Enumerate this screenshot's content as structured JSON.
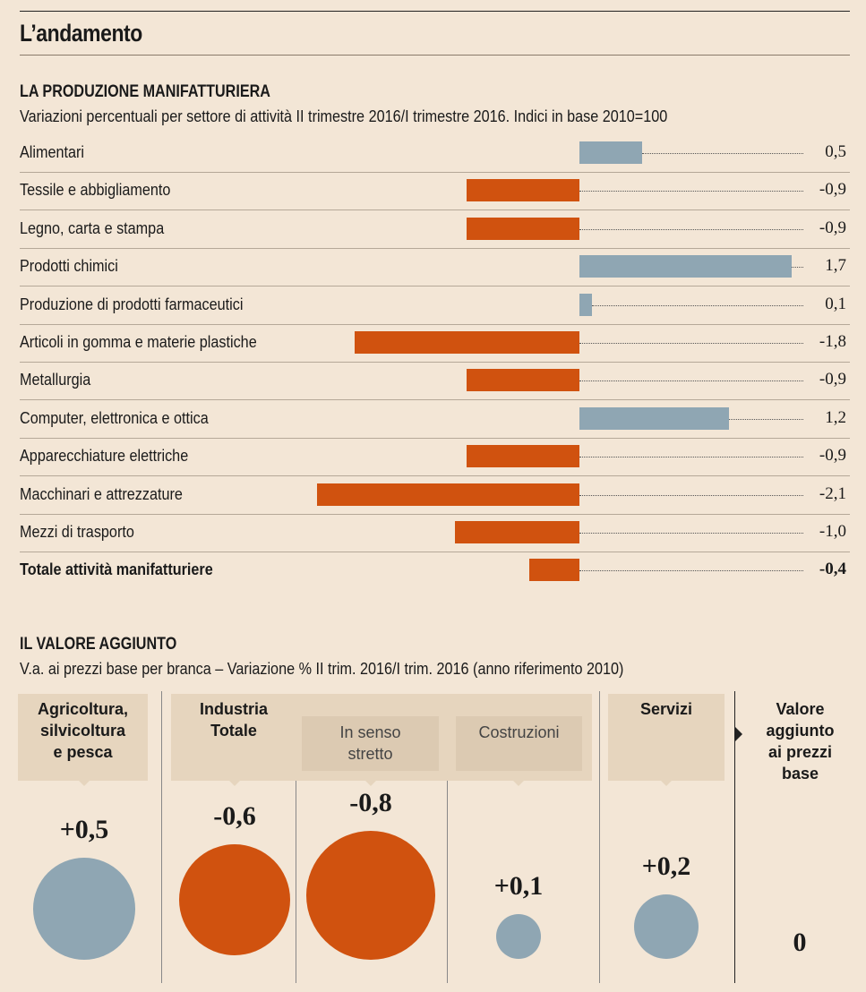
{
  "header": {
    "title": "L’andamento"
  },
  "colors": {
    "positive": "#8fa6b3",
    "negative": "#d0520f",
    "background": "#f3e6d6"
  },
  "chart_data": [
    {
      "type": "bar",
      "orientation": "horizontal",
      "title": "LA PRODUZIONE MANIFATTURIERA",
      "subtitle": "Variazioni percentuali per settore di attività II trimestre 2016/I trimestre 2016. Indici in base 2010=100",
      "categories": [
        "Alimentari",
        "Tessile e abbigliamento",
        "Legno, carta e stampa",
        "Prodotti chimici",
        "Produzione di prodotti farmaceutici",
        "Articoli in gomma e materie plastiche",
        "Metallurgia",
        "Computer, elettronica e ottica",
        "Apparecchiature elettriche",
        "Macchinari e attrezzature",
        "Mezzi di trasporto",
        "Totale attività manifatturiere"
      ],
      "values": [
        0.5,
        -0.9,
        -0.9,
        1.7,
        0.1,
        -1.8,
        -0.9,
        1.2,
        -0.9,
        -2.1,
        -1.0,
        -0.4
      ],
      "labels": [
        "0,5",
        "-0,9",
        "-0,9",
        "1,7",
        "0,1",
        "-1,8",
        "-0,9",
        "1,2",
        "-0,9",
        "-2,1",
        "-1,0",
        "-0,4"
      ]
    },
    {
      "type": "bubble",
      "title": "IL VALORE AGGIUNTO",
      "subtitle": "V.a. ai prezzi base per branca – Variazione % II trim. 2016/I trim. 2016 (anno riferimento 2010)",
      "categories": [
        "Agricoltura, silvicoltura e pesca",
        "Industria Totale",
        "In senso stretto",
        "Costruzioni",
        "Servizi"
      ],
      "values": [
        0.5,
        -0.6,
        -0.8,
        0.1,
        0.2
      ],
      "labels": [
        "+0,5",
        "-0,6",
        "-0,8",
        "+0,1",
        "+0,2"
      ],
      "header_lines": [
        [
          "Agricoltura,",
          "silvicoltura",
          "e pesca"
        ],
        [
          "Industria",
          "Totale"
        ],
        [
          "In senso",
          "stretto"
        ],
        [
          "Costruzioni"
        ],
        [
          "Servizi"
        ]
      ],
      "total": {
        "label_lines": [
          "Valore",
          "aggiunto",
          "ai prezzi",
          "base"
        ],
        "value": "0"
      }
    }
  ]
}
